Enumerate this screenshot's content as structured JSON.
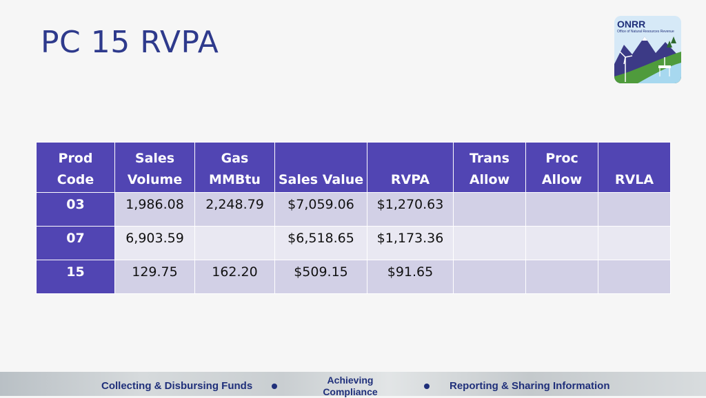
{
  "slide": {
    "title": "PC 15 RVPA"
  },
  "logo": {
    "name": "ONRR",
    "subtitle": "Office of Natural Resources Revenue"
  },
  "table": {
    "headers": [
      [
        "Prod",
        "Code"
      ],
      [
        "Sales",
        "Volume"
      ],
      [
        "Gas",
        "MMBtu"
      ],
      [
        "",
        "Sales Value"
      ],
      [
        "",
        "RVPA"
      ],
      [
        "Trans",
        "Allow"
      ],
      [
        "Proc",
        "Allow"
      ],
      [
        "",
        "RVLA"
      ]
    ],
    "rows": [
      [
        "03",
        "1,986.08",
        "2,248.79",
        "$7,059.06",
        "$1,270.63",
        "",
        "",
        ""
      ],
      [
        "07",
        "6,903.59",
        "",
        "$6,518.65",
        "$1,173.36",
        "",
        "",
        ""
      ],
      [
        "15",
        "129.75",
        "162.20",
        "$509.15",
        "$91.65",
        "",
        "",
        ""
      ]
    ]
  },
  "footer": {
    "items": [
      "Collecting & Disbursing Funds",
      "Achieving Compliance",
      "Reporting & Sharing Information"
    ]
  },
  "colors": {
    "title": "#2e3a8c",
    "header": "#5145b3",
    "row_dark": "#d2d0e6",
    "row_light": "#e9e8f2"
  }
}
